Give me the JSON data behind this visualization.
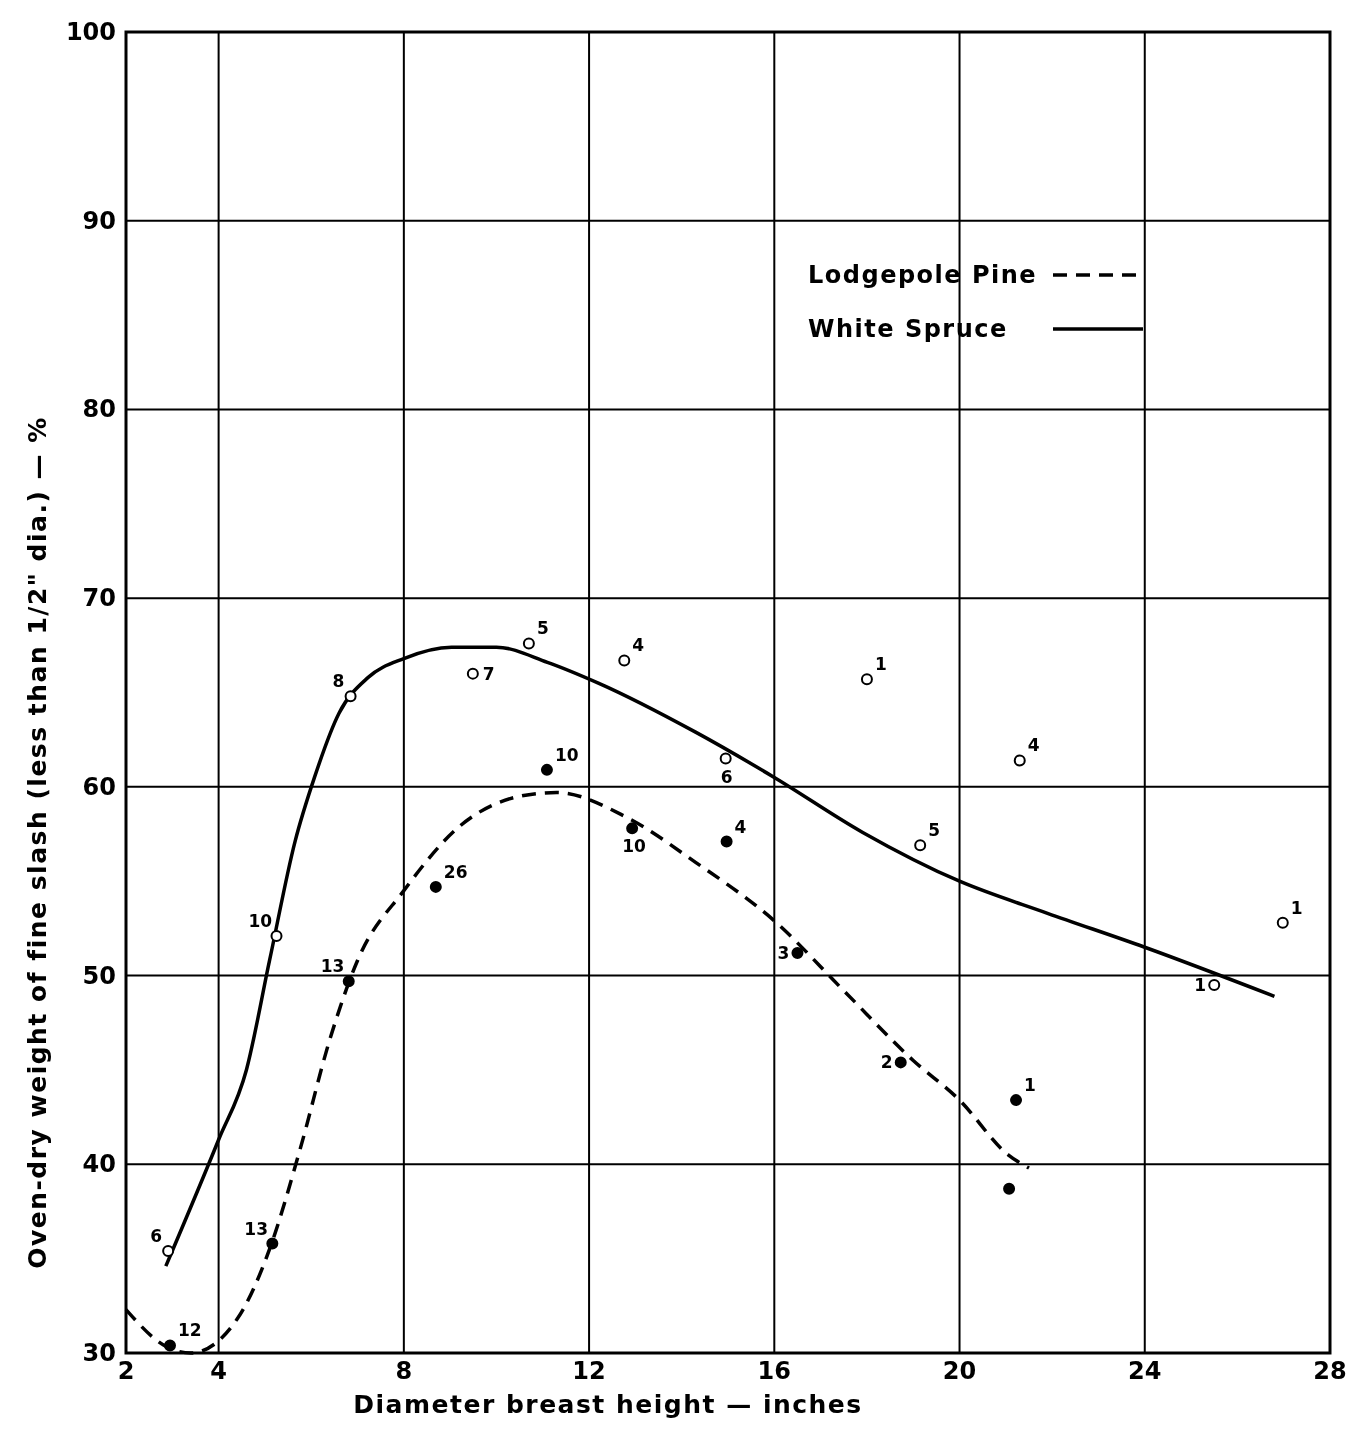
{
  "chart_data": {
    "type": "line",
    "xlabel": "Diameter breast height — inches",
    "ylabel": "Oven-dry weight of fine slash (less than 1/2\" dia.) — %",
    "xlim": [
      2,
      28
    ],
    "xticks": [
      2,
      4,
      8,
      12,
      16,
      20,
      24,
      28
    ],
    "ylim": [
      30,
      100
    ],
    "yticks": [
      30,
      40,
      50,
      60,
      70,
      80,
      90,
      100
    ],
    "grid": true,
    "legend": "top right",
    "series": [
      {
        "name": "Lodgepole Pine",
        "line_style": "dashed",
        "color": "#000000",
        "x": [
          2.0,
          2.9,
          3.4,
          4.4,
          5.1,
          5.76,
          6.4,
          7.0,
          8,
          9.2,
          10.5,
          11.3,
          12.8,
          14.3,
          16,
          17.5,
          19,
          20,
          21.05,
          21.5
        ],
        "values": [
          32.3,
          30.3,
          30,
          31.8,
          35.5,
          40.8,
          46.6,
          50.8,
          54.5,
          57.9,
          59.5,
          59.7,
          58.4,
          56,
          52.9,
          49.2,
          45.5,
          43.4,
          40.5,
          39.8
        ]
      },
      {
        "name": "White Spruce",
        "line_style": "solid",
        "color": "#000000",
        "x": [
          2.86,
          4,
          4.6,
          5.1,
          5.65,
          6.07,
          6.6,
          7.23,
          8,
          9.03,
          10,
          11.1,
          12.2,
          14.3,
          16,
          17.9,
          20,
          21.9,
          24,
          26.8
        ],
        "values": [
          34.6,
          41.3,
          45,
          50.8,
          57.1,
          60.5,
          63.9,
          65.8,
          66.8,
          67.4,
          67.4,
          66.6,
          65.5,
          62.9,
          60.5,
          57.6,
          55,
          53.3,
          51.5,
          48.9
        ]
      },
      {
        "type": "scatter",
        "marker": "circle",
        "color": "#000000",
        "x": [
          2.95,
          5.16,
          6.81,
          8.69,
          11.09,
          12.93,
          14.97,
          16.5,
          18.73,
          21.22,
          21.07
        ],
        "values": [
          30.4,
          35.8,
          49.7,
          54.7,
          60.9,
          57.8,
          57.1,
          51.2,
          45.4,
          43.4,
          38.7
        ]
      },
      {
        "type": "scatter",
        "marker": "circle",
        "color": "#ffffff",
        "x": [
          2.91,
          5.25,
          6.85,
          9.49,
          10.7,
          12.76,
          14.95,
          18.0,
          19.15,
          21.3,
          25.5,
          26.98
        ],
        "values": [
          35.4,
          52.1,
          64.8,
          66.0,
          67.6,
          66.7,
          61.5,
          65.7,
          56.9,
          61.4,
          49.5,
          52.8
        ]
      }
    ],
    "annotations": [
      {
        "text": "12",
        "x": 2.95,
        "y": 30.4
      },
      {
        "text": "13",
        "x": 5.16,
        "y": 35.8
      },
      {
        "text": "13",
        "x": 6.81,
        "y": 49.7
      },
      {
        "text": "26",
        "x": 8.69,
        "y": 54.7
      },
      {
        "text": "10",
        "x": 11.09,
        "y": 60.9
      },
      {
        "text": "10",
        "x": 12.93,
        "y": 57.8
      },
      {
        "text": "4",
        "x": 14.97,
        "y": 57.1
      },
      {
        "text": "3",
        "x": 16.5,
        "y": 51.2
      },
      {
        "text": "2",
        "x": 18.73,
        "y": 45.4
      },
      {
        "text": "1",
        "x": 21.22,
        "y": 43.4
      },
      {
        "text": "6",
        "x": 2.91,
        "y": 35.4
      },
      {
        "text": "10",
        "x": 5.25,
        "y": 52.1
      },
      {
        "text": "8",
        "x": 6.85,
        "y": 64.8
      },
      {
        "text": "7",
        "x": 9.49,
        "y": 66.0
      },
      {
        "text": "5",
        "x": 10.7,
        "y": 67.6
      },
      {
        "text": "4",
        "x": 12.76,
        "y": 66.7
      },
      {
        "text": "6",
        "x": 14.95,
        "y": 61.5
      },
      {
        "text": "1",
        "x": 18.0,
        "y": 65.7
      },
      {
        "text": "5",
        "x": 19.15,
        "y": 56.9
      },
      {
        "text": "4",
        "x": 21.3,
        "y": 61.4
      },
      {
        "text": "1",
        "x": 25.5,
        "y": 49.5
      },
      {
        "text": "1",
        "x": 26.98,
        "y": 52.8
      }
    ]
  }
}
